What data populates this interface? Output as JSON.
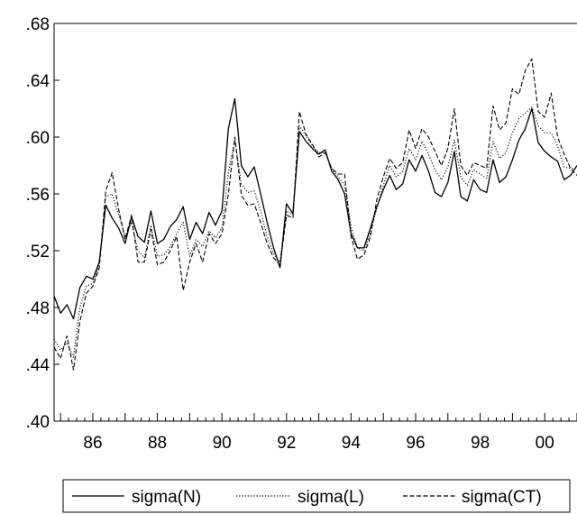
{
  "chart_data": {
    "type": "line",
    "title": "",
    "xlabel": "",
    "ylabel": "",
    "x_range": [
      1984.8,
      2001.0
    ],
    "ylim": [
      0.4,
      0.68
    ],
    "y_ticks": [
      0.4,
      0.44,
      0.48,
      0.52,
      0.56,
      0.6,
      0.64,
      0.68
    ],
    "y_tick_labels": [
      ".40",
      ".44",
      ".48",
      ".52",
      ".56",
      ".60",
      ".64",
      ".68"
    ],
    "x_ticks": [
      1986,
      1988,
      1990,
      1992,
      1994,
      1996,
      1998,
      2000
    ],
    "x_tick_labels": [
      "86",
      "88",
      "90",
      "92",
      "94",
      "96",
      "98",
      "00"
    ],
    "grid": false,
    "legend_position": "bottom",
    "series": [
      {
        "name": "sigma(N)",
        "line_style": "solid",
        "x": [
          1984.8,
          1985.0,
          1985.2,
          1985.4,
          1985.6,
          1985.8,
          1986.0,
          1986.2,
          1986.4,
          1986.6,
          1986.8,
          1987.0,
          1987.2,
          1987.4,
          1987.6,
          1987.8,
          1988.0,
          1988.2,
          1988.4,
          1988.6,
          1988.8,
          1989.0,
          1989.2,
          1989.4,
          1989.6,
          1989.8,
          1990.0,
          1990.2,
          1990.4,
          1990.6,
          1990.8,
          1991.0,
          1991.2,
          1991.4,
          1991.6,
          1991.8,
          1992.0,
          1992.2,
          1992.4,
          1992.6,
          1992.8,
          1993.0,
          1993.2,
          1993.4,
          1993.6,
          1993.8,
          1994.0,
          1994.2,
          1994.4,
          1994.6,
          1994.8,
          1995.0,
          1995.2,
          1995.4,
          1995.6,
          1995.8,
          1996.0,
          1996.2,
          1996.4,
          1996.6,
          1996.8,
          1997.0,
          1997.2,
          1997.4,
          1997.6,
          1997.8,
          1998.0,
          1998.2,
          1998.4,
          1998.6,
          1998.8,
          1999.0,
          1999.2,
          1999.4,
          1999.6,
          1999.8,
          2000.0,
          2000.2,
          2000.4,
          2000.6,
          2000.8,
          2001.0
        ],
        "values": [
          0.488,
          0.476,
          0.482,
          0.472,
          0.494,
          0.502,
          0.5,
          0.512,
          0.552,
          0.543,
          0.536,
          0.525,
          0.544,
          0.53,
          0.526,
          0.548,
          0.525,
          0.528,
          0.537,
          0.542,
          0.551,
          0.528,
          0.54,
          0.532,
          0.547,
          0.538,
          0.548,
          0.606,
          0.627,
          0.58,
          0.572,
          0.579,
          0.56,
          0.54,
          0.522,
          0.508,
          0.553,
          0.546,
          0.604,
          0.597,
          0.592,
          0.588,
          0.591,
          0.576,
          0.57,
          0.56,
          0.532,
          0.522,
          0.522,
          0.536,
          0.551,
          0.563,
          0.573,
          0.563,
          0.567,
          0.584,
          0.576,
          0.587,
          0.576,
          0.561,
          0.558,
          0.568,
          0.59,
          0.558,
          0.555,
          0.57,
          0.563,
          0.561,
          0.584,
          0.568,
          0.572,
          0.584,
          0.598,
          0.606,
          0.62,
          0.596,
          0.59,
          0.586,
          0.583,
          0.57,
          0.573,
          0.58
        ]
      },
      {
        "name": "sigma(L)",
        "line_style": "dotted",
        "x": [
          1984.8,
          1985.0,
          1985.2,
          1985.4,
          1985.6,
          1985.8,
          1986.0,
          1986.2,
          1986.4,
          1986.6,
          1986.8,
          1987.0,
          1987.2,
          1987.4,
          1987.6,
          1987.8,
          1988.0,
          1988.2,
          1988.4,
          1988.6,
          1988.8,
          1989.0,
          1989.2,
          1989.4,
          1989.6,
          1989.8,
          1990.0,
          1990.2,
          1990.4,
          1990.6,
          1990.8,
          1991.0,
          1991.2,
          1991.4,
          1991.6,
          1991.8,
          1992.0,
          1992.2,
          1992.4,
          1992.6,
          1992.8,
          1993.0,
          1993.2,
          1993.4,
          1993.6,
          1993.8,
          1994.0,
          1994.2,
          1994.4,
          1994.6,
          1994.8,
          1995.0,
          1995.2,
          1995.4,
          1995.6,
          1995.8,
          1996.0,
          1996.2,
          1996.4,
          1996.6,
          1996.8,
          1997.0,
          1997.2,
          1997.4,
          1997.6,
          1997.8,
          1998.0,
          1998.2,
          1998.4,
          1998.6,
          1998.8,
          1999.0,
          1999.2,
          1999.4,
          1999.6,
          1999.8,
          2000.0,
          2000.2,
          2000.4,
          2000.6,
          2000.8,
          2001.0
        ],
        "values": [
          0.458,
          0.45,
          0.455,
          0.445,
          0.48,
          0.495,
          0.497,
          0.51,
          0.558,
          0.56,
          0.545,
          0.53,
          0.54,
          0.52,
          0.515,
          0.538,
          0.516,
          0.517,
          0.523,
          0.532,
          0.54,
          0.516,
          0.528,
          0.523,
          0.534,
          0.529,
          0.536,
          0.575,
          0.598,
          0.567,
          0.561,
          0.562,
          0.548,
          0.53,
          0.518,
          0.512,
          0.548,
          0.545,
          0.608,
          0.601,
          0.594,
          0.589,
          0.589,
          0.578,
          0.572,
          0.566,
          0.537,
          0.522,
          0.52,
          0.533,
          0.55,
          0.566,
          0.58,
          0.572,
          0.576,
          0.592,
          0.584,
          0.597,
          0.588,
          0.577,
          0.57,
          0.579,
          0.598,
          0.572,
          0.566,
          0.577,
          0.574,
          0.571,
          0.597,
          0.585,
          0.589,
          0.603,
          0.613,
          0.617,
          0.621,
          0.608,
          0.603,
          0.603,
          0.594,
          0.579,
          0.578,
          0.578
        ]
      },
      {
        "name": "sigma(CT)",
        "line_style": "dashed",
        "x": [
          1984.8,
          1985.0,
          1985.2,
          1985.4,
          1985.6,
          1985.8,
          1986.0,
          1986.2,
          1986.4,
          1986.6,
          1986.8,
          1987.0,
          1987.2,
          1987.4,
          1987.6,
          1987.8,
          1988.0,
          1988.2,
          1988.4,
          1988.6,
          1988.8,
          1989.0,
          1989.2,
          1989.4,
          1989.6,
          1989.8,
          1990.0,
          1990.2,
          1990.4,
          1990.6,
          1990.8,
          1991.0,
          1991.2,
          1991.4,
          1991.6,
          1991.8,
          1992.0,
          1992.2,
          1992.4,
          1992.6,
          1992.8,
          1993.0,
          1993.2,
          1993.4,
          1993.6,
          1993.8,
          1994.0,
          1994.2,
          1994.4,
          1994.6,
          1994.8,
          1995.0,
          1995.2,
          1995.4,
          1995.6,
          1995.8,
          1996.0,
          1996.2,
          1996.4,
          1996.6,
          1996.8,
          1997.0,
          1997.2,
          1997.4,
          1997.6,
          1997.8,
          1998.0,
          1998.2,
          1998.4,
          1998.6,
          1998.8,
          1999.0,
          1999.2,
          1999.4,
          1999.6,
          1999.8,
          2000.0,
          2000.2,
          2000.4,
          2000.6,
          2000.8,
          2001.0
        ],
        "values": [
          0.452,
          0.444,
          0.46,
          0.436,
          0.47,
          0.49,
          0.495,
          0.508,
          0.562,
          0.575,
          0.549,
          0.528,
          0.545,
          0.512,
          0.512,
          0.535,
          0.51,
          0.512,
          0.52,
          0.53,
          0.492,
          0.512,
          0.525,
          0.512,
          0.532,
          0.525,
          0.532,
          0.56,
          0.6,
          0.559,
          0.552,
          0.553,
          0.54,
          0.525,
          0.515,
          0.51,
          0.545,
          0.543,
          0.618,
          0.602,
          0.595,
          0.586,
          0.589,
          0.578,
          0.574,
          0.574,
          0.53,
          0.514,
          0.517,
          0.53,
          0.556,
          0.572,
          0.585,
          0.578,
          0.582,
          0.605,
          0.592,
          0.606,
          0.6,
          0.59,
          0.58,
          0.592,
          0.62,
          0.58,
          0.573,
          0.582,
          0.58,
          0.578,
          0.622,
          0.605,
          0.61,
          0.634,
          0.63,
          0.647,
          0.655,
          0.618,
          0.614,
          0.631,
          0.6,
          0.588,
          0.578,
          0.573
        ]
      }
    ]
  }
}
